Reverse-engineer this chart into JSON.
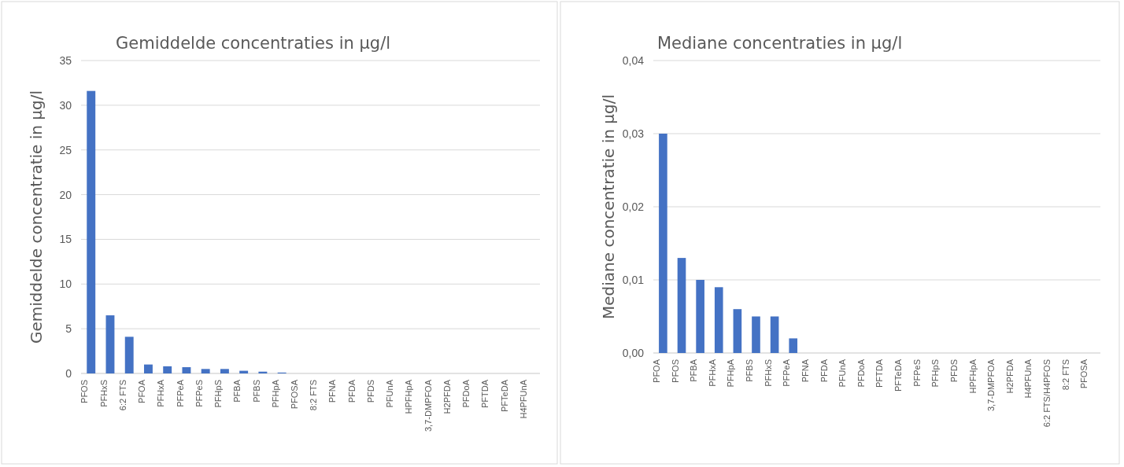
{
  "chart_data": [
    {
      "type": "bar",
      "title": "Gemiddelde concentraties in µg/l",
      "ylabel": "Gemiddelde concentratie in µg/l",
      "categories": [
        "PFOS",
        "PFHxS",
        "6:2 FTS",
        "PFOA",
        "PFHxA",
        "PFPeA",
        "PFPeS",
        "PFHpS",
        "PFBA",
        "PFBS",
        "PFHpA",
        "PFOSA",
        "8:2 FTS",
        "PFNA",
        "PFDA",
        "PFDS",
        "PFUnA",
        "HPFHpA",
        "3,7-DMPFOA",
        "H2PFDA",
        "PFDoA",
        "PFTDA",
        "PFTeDA",
        "H4PFUnA"
      ],
      "values": [
        31.6,
        6.5,
        4.1,
        1.0,
        0.8,
        0.7,
        0.5,
        0.5,
        0.3,
        0.2,
        0.1,
        0,
        0,
        0,
        0,
        0,
        0,
        0,
        0,
        0,
        0,
        0,
        0,
        0
      ],
      "color": "#4472c4",
      "ylim": [
        0,
        35
      ],
      "yticks": [
        0,
        5,
        10,
        15,
        20,
        25,
        30,
        35
      ],
      "grid": "y"
    },
    {
      "type": "bar",
      "title": "Mediane concentraties in µg/l",
      "ylabel": "Mediane concentratie in µg/l",
      "categories": [
        "PFOA",
        "PFOS",
        "PFBA",
        "PFHxA",
        "PFHpA",
        "PFBS",
        "PFHxS",
        "PFPeA",
        "PFNA",
        "PFDA",
        "PFUnA",
        "PFDoA",
        "PFTDA",
        "PFTeDA",
        "PFPeS",
        "PFHpS",
        "PFDS",
        "HPFHpA",
        "3,7-DMPFOA",
        "H2PFDA",
        "H4PFUnA",
        "6:2 FTS/H4PFOS",
        "8:2 FTS",
        "PFOSA"
      ],
      "values": [
        0.03,
        0.013,
        0.01,
        0.009,
        0.006,
        0.005,
        0.005,
        0.002,
        0,
        0,
        0,
        0,
        0,
        0,
        0,
        0,
        0,
        0,
        0,
        0,
        0,
        0,
        0,
        0
      ],
      "color": "#4472c4",
      "ylim": [
        0,
        0.04
      ],
      "yticks": [
        {
          "value": 0,
          "label": "0,00"
        },
        {
          "value": 0.01,
          "label": "0,01"
        },
        {
          "value": 0.02,
          "label": "0,02"
        },
        {
          "value": 0.03,
          "label": "0,03"
        },
        {
          "value": 0.04,
          "label": "0,04"
        }
      ],
      "grid": "y"
    }
  ]
}
